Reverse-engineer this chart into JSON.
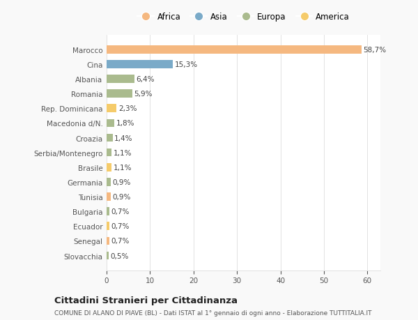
{
  "categories": [
    "Marocco",
    "Cina",
    "Albania",
    "Romania",
    "Rep. Dominicana",
    "Macedonia d/N.",
    "Croazia",
    "Serbia/Montenegro",
    "Brasile",
    "Germania",
    "Tunisia",
    "Bulgaria",
    "Ecuador",
    "Senegal",
    "Slovacchia"
  ],
  "values": [
    58.7,
    15.3,
    6.4,
    5.9,
    2.3,
    1.8,
    1.4,
    1.1,
    1.1,
    0.9,
    0.9,
    0.7,
    0.7,
    0.7,
    0.5
  ],
  "labels": [
    "58,7%",
    "15,3%",
    "6,4%",
    "5,9%",
    "2,3%",
    "1,8%",
    "1,4%",
    "1,1%",
    "1,1%",
    "0,9%",
    "0,9%",
    "0,7%",
    "0,7%",
    "0,7%",
    "0,5%"
  ],
  "colors": [
    "#F5B880",
    "#7AAAC8",
    "#AABB8E",
    "#AABB8E",
    "#F5CB6A",
    "#AABB8E",
    "#AABB8E",
    "#AABB8E",
    "#F5CB6A",
    "#AABB8E",
    "#F5B880",
    "#AABB8E",
    "#F5CB6A",
    "#F5B880",
    "#AABB8E"
  ],
  "legend_labels": [
    "Africa",
    "Asia",
    "Europa",
    "America"
  ],
  "legend_colors": [
    "#F5B880",
    "#7AAAC8",
    "#AABB8E",
    "#F5CB6A"
  ],
  "title": "Cittadini Stranieri per Cittadinanza",
  "subtitle": "COMUNE DI ALANO DI PIAVE (BL) - Dati ISTAT al 1° gennaio di ogni anno - Elaborazione TUTTITALIA.IT",
  "xlim": [
    0,
    63
  ],
  "xticks": [
    0,
    10,
    20,
    30,
    40,
    50,
    60
  ],
  "fig_bg": "#f9f9f9",
  "plot_bg": "#ffffff"
}
